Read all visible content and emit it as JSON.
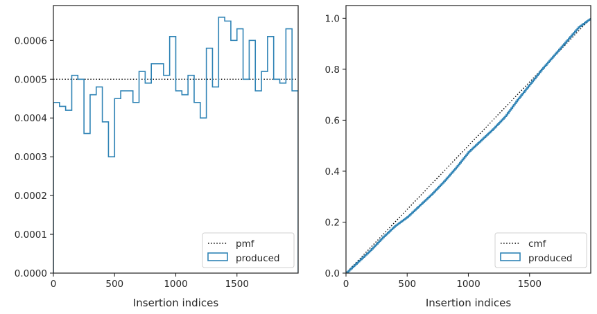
{
  "chart_data": [
    {
      "type": "line",
      "xlabel": "Insertion indices",
      "ylabel": "",
      "xlim": [
        0,
        2000
      ],
      "ylim": [
        0,
        0.00069
      ],
      "x_ticks": [
        "0",
        "500",
        "1000",
        "1500"
      ],
      "y_ticks": [
        "0.0000",
        "0.0001",
        "0.0002",
        "0.0003",
        "0.0004",
        "0.0005",
        "0.0006"
      ],
      "legend_position": "lower-right",
      "legend": [
        "pmf",
        "produced"
      ],
      "series": [
        {
          "name": "pmf",
          "style": "dotted",
          "color": "#000000",
          "x": [
            0,
            2000
          ],
          "values": [
            0.0005,
            0.0005
          ]
        },
        {
          "name": "produced",
          "style": "step-histogram",
          "color": "#2f83b5",
          "bin_edges": [
            0,
            50,
            100,
            150,
            200,
            250,
            300,
            350,
            400,
            450,
            500,
            550,
            600,
            650,
            700,
            750,
            800,
            850,
            900,
            950,
            1000,
            1050,
            1100,
            1150,
            1200,
            1250,
            1300,
            1350,
            1400,
            1450,
            1500,
            1550,
            1600,
            1650,
            1700,
            1750,
            1800,
            1850,
            1900,
            1950,
            2000
          ],
          "values": [
            0.00044,
            0.00043,
            0.00042,
            0.00051,
            0.0005,
            0.00036,
            0.00046,
            0.00048,
            0.00039,
            0.0003,
            0.00045,
            0.00047,
            0.00047,
            0.00044,
            0.00052,
            0.00049,
            0.00054,
            0.00054,
            0.00051,
            0.00061,
            0.00047,
            0.00046,
            0.00051,
            0.00044,
            0.0004,
            0.00058,
            0.00048,
            0.00066,
            0.00065,
            0.0006,
            0.00063,
            0.0005,
            0.0006,
            0.00047,
            0.00052,
            0.00061,
            0.0005,
            0.00049,
            0.00063,
            0.00047
          ]
        }
      ]
    },
    {
      "type": "line",
      "xlabel": "Insertion indices",
      "ylabel": "",
      "xlim": [
        0,
        2000
      ],
      "ylim": [
        0,
        1.05
      ],
      "x_ticks": [
        "0",
        "500",
        "1000",
        "1500"
      ],
      "y_ticks": [
        "0.0",
        "0.2",
        "0.4",
        "0.6",
        "0.8",
        "1.0"
      ],
      "legend_position": "lower-right",
      "legend": [
        "cmf",
        "produced"
      ],
      "series": [
        {
          "name": "cmf",
          "style": "dotted",
          "color": "#000000",
          "x": [
            0,
            2000
          ],
          "values": [
            0,
            1
          ]
        },
        {
          "name": "produced",
          "style": "step-cumulative",
          "color": "#2f83b5",
          "x": [
            0,
            100,
            200,
            300,
            400,
            500,
            600,
            700,
            800,
            900,
            1000,
            1100,
            1200,
            1300,
            1400,
            1500,
            1600,
            1700,
            1800,
            1900,
            2000
          ],
          "values": [
            0,
            0.045,
            0.09,
            0.14,
            0.185,
            0.22,
            0.265,
            0.31,
            0.36,
            0.415,
            0.475,
            0.52,
            0.565,
            0.615,
            0.68,
            0.74,
            0.8,
            0.855,
            0.91,
            0.965,
            1.0
          ]
        }
      ]
    }
  ]
}
